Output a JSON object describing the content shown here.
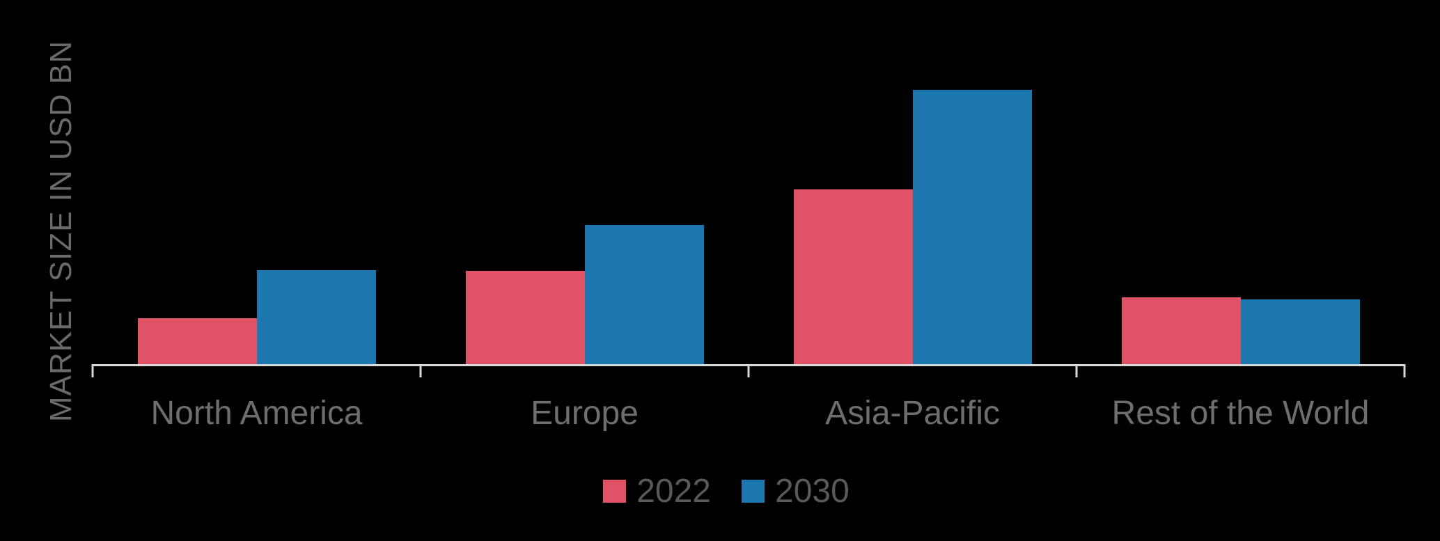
{
  "chart_data": {
    "type": "bar",
    "title": "",
    "categories": [
      "North America",
      "Europe",
      "Asia-Pacific",
      "Rest of the World"
    ],
    "series": [
      {
        "name": "2022",
        "color": "#e05366",
        "values": [
          6.6,
          13.4,
          25.1,
          9.6
        ]
      },
      {
        "name": "2030",
        "color": "#1b77ad",
        "values": [
          13.5,
          20.0,
          39.4,
          9.3
        ]
      }
    ],
    "ylabel": "MARKET SIZE IN USD BN",
    "ylim": [
      0,
      45
    ],
    "y_tick_labels_visible": false,
    "grid": false,
    "legend_position": "bottom",
    "legend_labels": [
      "2022",
      "2030"
    ]
  },
  "colors": {
    "background": "#000000",
    "axis_line": "#d9d9d9",
    "category_label": "#6e6e6e",
    "axis_title": "#6a6a6a",
    "legend_text": "#595959"
  }
}
